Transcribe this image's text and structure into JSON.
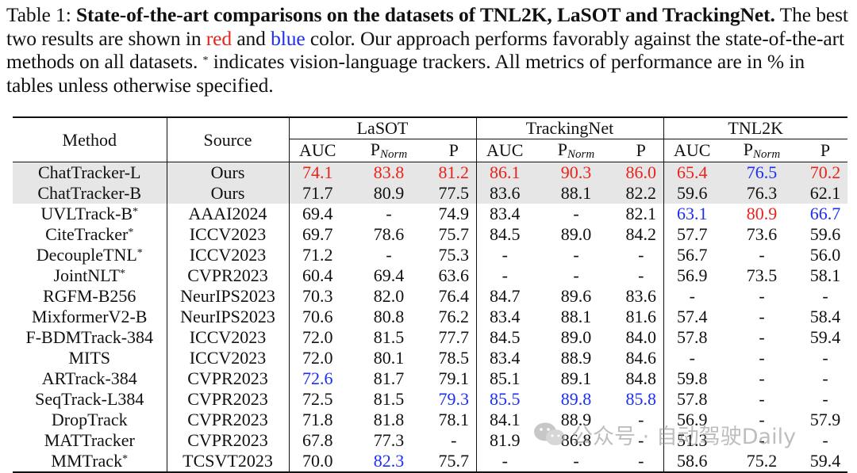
{
  "caption": {
    "label": "Table 1:",
    "title": "State-of-the-art comparisons on the datasets of TNL2K, LaSOT and TrackingNet.",
    "line_a": "The best two results are shown in",
    "red_word": "red",
    "and_word": "and",
    "blue_word": "blue",
    "line_b": "color.  Our approach performs favorably against the state-of-the-art methods on all datasets.",
    "star": "*",
    "line_c": "indicates vision-language trackers.  All metrics of performance are in % in tables unless otherwise specified."
  },
  "table": {
    "col_method": "Method",
    "col_source": "Source",
    "groups": [
      "LaSOT",
      "TrackingNet",
      "TNL2K"
    ],
    "metric_auc": "AUC",
    "metric_p": "P",
    "norm_sub": "Norm",
    "rows": [
      {
        "method": "ChatTracker-L",
        "sup": "",
        "source": "Ours",
        "highlight": true,
        "values": [
          "74.1",
          "83.8",
          "81.2",
          "86.1",
          "90.3",
          "86.0",
          "65.4",
          "76.5",
          "70.2"
        ],
        "colors": [
          "red",
          "red",
          "red",
          "red",
          "red",
          "red",
          "red",
          "blue",
          "red"
        ]
      },
      {
        "method": "ChatTracker-B",
        "sup": "",
        "source": "Ours",
        "highlight": true,
        "values": [
          "71.7",
          "80.9",
          "77.5",
          "83.6",
          "88.1",
          "82.2",
          "59.6",
          "76.3",
          "62.1"
        ],
        "colors": [
          "",
          "",
          "",
          "",
          "",
          "",
          "",
          "",
          ""
        ]
      },
      {
        "method": "UVLTrack-B",
        "sup": "*",
        "source": "AAAI2024",
        "highlight": false,
        "values": [
          "69.4",
          "-",
          "74.9",
          "83.4",
          "-",
          "82.1",
          "63.1",
          "80.9",
          "66.7"
        ],
        "colors": [
          "",
          "",
          "",
          "",
          "",
          "",
          "blue",
          "red",
          "blue"
        ]
      },
      {
        "method": "CiteTracker",
        "sup": "*",
        "source": "ICCV2023",
        "highlight": false,
        "values": [
          "69.7",
          "78.6",
          "75.7",
          "84.5",
          "89.0",
          "84.2",
          "57.7",
          "73.6",
          "59.6"
        ],
        "colors": [
          "",
          "",
          "",
          "",
          "",
          "",
          "",
          "",
          ""
        ]
      },
      {
        "method": "DecoupleTNL",
        "sup": "*",
        "source": "ICCV2023",
        "highlight": false,
        "values": [
          "71.2",
          "-",
          "75.3",
          "-",
          "-",
          "-",
          "56.7",
          "-",
          "56.0"
        ],
        "colors": [
          "",
          "",
          "",
          "",
          "",
          "",
          "",
          "",
          ""
        ]
      },
      {
        "method": "JointNLT",
        "sup": "*",
        "source": "CVPR2023",
        "highlight": false,
        "values": [
          "60.4",
          "69.4",
          "63.6",
          "-",
          "-",
          "-",
          "56.9",
          "73.5",
          "58.1"
        ],
        "colors": [
          "",
          "",
          "",
          "",
          "",
          "",
          "",
          "",
          ""
        ]
      },
      {
        "method": "RGFM-B256",
        "sup": "",
        "source": "NeurIPS2023",
        "highlight": false,
        "values": [
          "70.3",
          "82.0",
          "76.4",
          "84.7",
          "89.6",
          "83.6",
          "-",
          "-",
          "-"
        ],
        "colors": [
          "",
          "",
          "",
          "",
          "",
          "",
          "",
          "",
          ""
        ]
      },
      {
        "method": "MixformerV2-B",
        "sup": "",
        "source": "NeurIPS2023",
        "highlight": false,
        "values": [
          "70.6",
          "80.8",
          "76.2",
          "83.4",
          "88.1",
          "81.6",
          "57.4",
          "-",
          "58.4"
        ],
        "colors": [
          "",
          "",
          "",
          "",
          "",
          "",
          "",
          "",
          ""
        ]
      },
      {
        "method": "F-BDMTrack-384",
        "sup": "",
        "source": "ICCV2023",
        "highlight": false,
        "values": [
          "72.0",
          "81.5",
          "77.7",
          "84.5",
          "89.0",
          "84.0",
          "57.8",
          "-",
          "59.4"
        ],
        "colors": [
          "",
          "",
          "",
          "",
          "",
          "",
          "",
          "",
          ""
        ]
      },
      {
        "method": "MITS",
        "sup": "",
        "source": "ICCV2023",
        "highlight": false,
        "values": [
          "72.0",
          "80.1",
          "78.5",
          "83.4",
          "88.9",
          "84.6",
          "-",
          "-",
          "-"
        ],
        "colors": [
          "",
          "",
          "",
          "",
          "",
          "",
          "",
          "",
          ""
        ]
      },
      {
        "method": "ARTrack-384",
        "sup": "",
        "source": "CVPR2023",
        "highlight": false,
        "values": [
          "72.6",
          "81.7",
          "79.1",
          "85.1",
          "89.1",
          "84.8",
          "59.8",
          "-",
          "-"
        ],
        "colors": [
          "blue",
          "",
          "",
          "",
          "",
          "",
          "",
          "",
          ""
        ]
      },
      {
        "method": "SeqTrack-L384",
        "sup": "",
        "source": "CVPR2023",
        "highlight": false,
        "values": [
          "72.5",
          "81.5",
          "79.3",
          "85.5",
          "89.8",
          "85.8",
          "57.8",
          "-",
          "-"
        ],
        "colors": [
          "",
          "",
          "blue",
          "blue",
          "blue",
          "blue",
          "",
          "",
          ""
        ]
      },
      {
        "method": "DropTrack",
        "sup": "",
        "source": "CVPR2023",
        "highlight": false,
        "values": [
          "71.8",
          "81.8",
          "78.1",
          "84.1",
          "88.9",
          "-",
          "56.9",
          "-",
          "57.9"
        ],
        "colors": [
          "",
          "",
          "",
          "",
          "",
          "",
          "",
          "",
          ""
        ]
      },
      {
        "method": "MATTracker",
        "sup": "",
        "source": "CVPR2023",
        "highlight": false,
        "values": [
          "67.8",
          "77.3",
          "-",
          "81.9",
          "86.8",
          "-",
          "51.3",
          "-",
          "-"
        ],
        "colors": [
          "",
          "",
          "",
          "",
          "",
          "",
          "",
          "",
          ""
        ]
      },
      {
        "method": "MMTrack",
        "sup": "*",
        "source": "TCSVT2023",
        "highlight": false,
        "values": [
          "70.0",
          "82.3",
          "75.7",
          "-",
          "-",
          "-",
          "58.6",
          "75.2",
          "59.4"
        ],
        "colors": [
          "",
          "blue",
          "",
          "",
          "",
          "",
          "",
          "",
          ""
        ]
      }
    ]
  },
  "watermark": {
    "text": "公众号 · 自动驾驶Daily",
    "icon": "wechat-logo-icon"
  },
  "colors": {
    "best": "#e8231c",
    "second": "#1b2ff2",
    "highlight_row": "#e6e6e6"
  }
}
